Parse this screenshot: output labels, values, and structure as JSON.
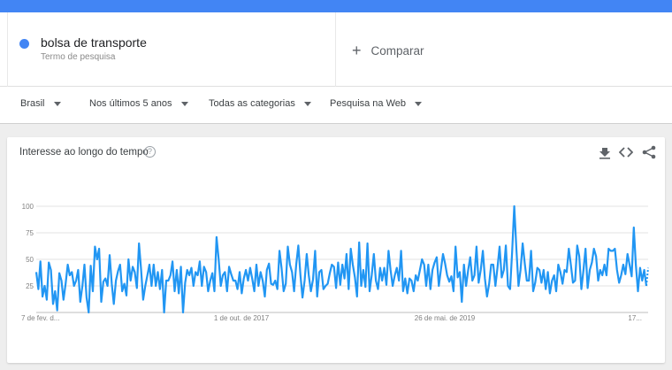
{
  "search": {
    "term": "bolsa de transporte",
    "term_subtitle": "Termo de pesquisa",
    "term_color": "#4285f4",
    "compare_icon": "plus-icon",
    "compare_label": "Comparar"
  },
  "filters": [
    {
      "label": "Brasil"
    },
    {
      "label": "Nos últimos 5 anos"
    },
    {
      "label": "Todas as categorias"
    },
    {
      "label": "Pesquisa na Web"
    }
  ],
  "card": {
    "title": "Interesse ao longo do tempo",
    "help_icon": "help-icon",
    "icons": [
      "download-icon",
      "embed-icon",
      "share-icon"
    ]
  },
  "chart_data": {
    "type": "line",
    "series_color": "#2196f3",
    "y_ticks": [
      "25",
      "50",
      "75",
      "100"
    ],
    "ylim": [
      0,
      100
    ],
    "grid": true,
    "x_tick_labels": [
      "7 de fev. d...",
      "1 de out. de 2017",
      "26 de mai. de 2019",
      "17..."
    ],
    "series": [
      {
        "values": [
          38,
          22,
          48,
          15,
          25,
          12,
          47,
          40,
          8,
          20,
          2,
          37,
          30,
          12,
          27,
          45,
          35,
          38,
          25,
          30,
          40,
          10,
          25,
          45,
          14,
          0,
          44,
          20,
          62,
          50,
          60,
          10,
          29,
          32,
          25,
          54,
          27,
          8,
          30,
          39,
          45,
          20,
          27,
          16,
          50,
          30,
          43,
          38,
          23,
          65,
          40,
          12,
          25,
          35,
          45,
          25,
          45,
          25,
          38,
          22,
          40,
          0,
          30,
          30,
          35,
          48,
          20,
          40,
          18,
          43,
          0,
          28,
          40,
          35,
          42,
          25,
          38,
          35,
          48,
          25,
          43,
          38,
          20,
          30,
          37,
          20,
          71,
          50,
          25,
          35,
          38,
          20,
          43,
          36,
          30,
          30,
          22,
          38,
          18,
          32,
          40,
          30,
          42,
          32,
          20,
          45,
          25,
          38,
          30,
          15,
          40,
          46,
          27,
          26,
          30,
          22,
          58,
          42,
          20,
          27,
          62,
          45,
          38,
          20,
          45,
          63,
          35,
          14,
          30,
          55,
          35,
          20,
          31,
          58,
          15,
          38,
          40,
          22,
          25,
          27,
          37,
          45,
          43,
          23,
          47,
          26,
          45,
          32,
          55,
          22,
          60,
          45,
          33,
          15,
          66,
          25,
          40,
          24,
          65,
          20,
          35,
          55,
          30,
          22,
          42,
          30,
          42,
          26,
          58,
          40,
          25,
          35,
          42,
          30,
          58,
          20,
          32,
          18,
          32,
          30,
          20,
          35,
          30,
          40,
          50,
          45,
          25,
          45,
          22,
          40,
          47,
          52,
          25,
          40,
          55,
          46,
          35,
          29,
          34,
          20,
          62,
          33,
          38,
          10,
          45,
          25,
          40,
          52,
          30,
          35,
          62,
          28,
          40,
          58,
          32,
          15,
          27,
          45,
          45,
          25,
          42,
          62,
          33,
          40,
          63,
          25,
          22,
          57,
          100,
          60,
          25,
          40,
          65,
          46,
          30,
          30,
          58,
          20,
          28,
          42,
          40,
          28,
          40,
          22,
          38,
          18,
          30,
          35,
          20,
          45,
          38,
          27,
          40,
          38,
          60,
          45,
          28,
          30,
          63,
          53,
          22,
          40,
          60,
          23,
          40,
          47,
          60,
          53,
          30,
          40,
          35,
          45,
          35,
          60,
          58,
          58,
          60,
          40,
          28,
          35,
          45,
          36,
          55,
          45,
          34,
          80,
          45,
          20,
          42,
          30,
          40,
          25
        ]
      }
    ]
  }
}
